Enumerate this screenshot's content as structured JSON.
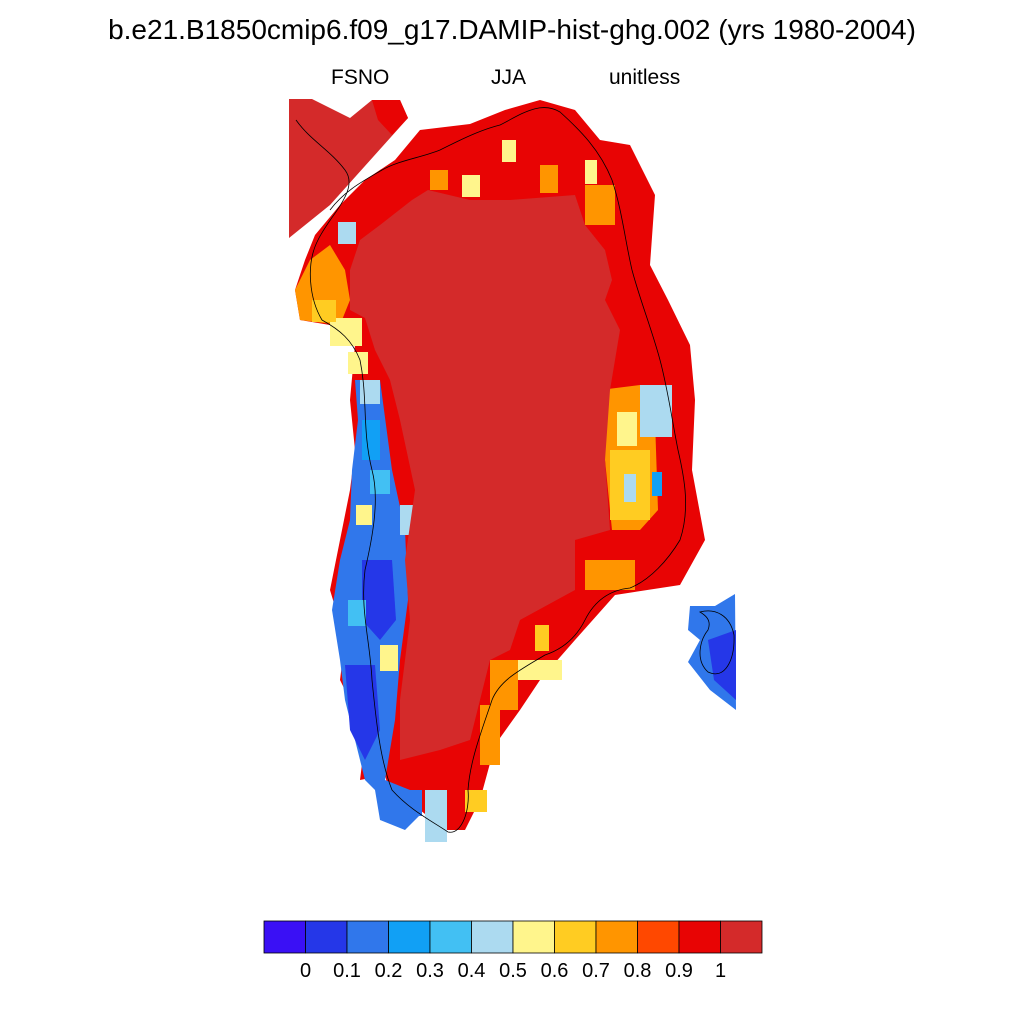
{
  "title": "b.e21.B1850cmip6.f09_g17.DAMIP-hist-ghg.002 (yrs 1980-2004)",
  "subtitles": {
    "left": "FSNO",
    "center": "JJA",
    "right": "unitless"
  },
  "colorbar": {
    "colors": [
      "#3a10f5",
      "#2537e8",
      "#3077eb",
      "#11a0f5",
      "#42c0f3",
      "#acdaf0",
      "#fff58c",
      "#ffcc22",
      "#ff9500",
      "#ff4800",
      "#e80404",
      "#d42a2a"
    ],
    "labels": [
      "0",
      "0.1",
      "0.2",
      "0.3",
      "0.4",
      "0.5",
      "0.6",
      "0.7",
      "0.8",
      "0.9",
      "1"
    ]
  },
  "map": {
    "region": "Greenland",
    "variable": "FSNO",
    "range": [
      0,
      1
    ]
  }
}
